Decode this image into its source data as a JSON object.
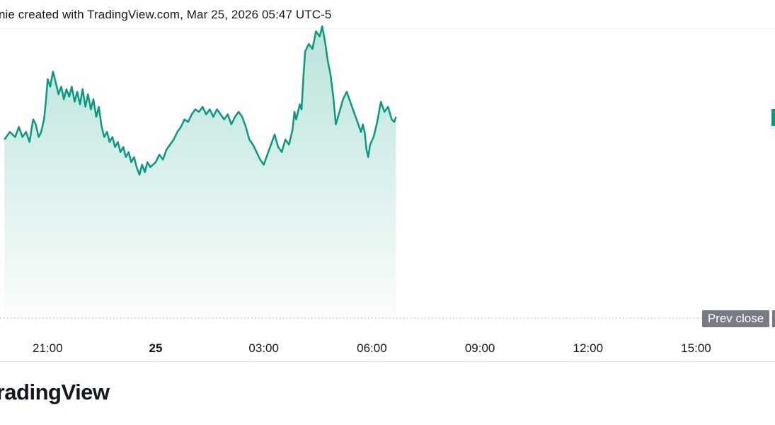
{
  "header": {
    "text": "nie created with TradingView.com, Mar 25, 2026 05:47 UTC-5"
  },
  "brand": {
    "text": "TradingView"
  },
  "prev_close": {
    "label": "Prev close"
  },
  "colors": {
    "line": "#089981",
    "fill_top": "#089981",
    "prev_close_badge": "#787b86",
    "dotted_line": "#b2b5be",
    "text": "#131722"
  },
  "chart_data": {
    "type": "area",
    "title": "",
    "xlabel": "",
    "ylabel": "",
    "x_tick_labels": [
      {
        "label": "21:00",
        "bold": false
      },
      {
        "label": "25",
        "bold": true
      },
      {
        "label": "03:00",
        "bold": false
      },
      {
        "label": "06:00",
        "bold": false
      },
      {
        "label": "09:00",
        "bold": false
      },
      {
        "label": "12:00",
        "bold": false
      },
      {
        "label": "15:00",
        "bold": false
      }
    ],
    "x_unit": "hours relative to Mar 25 00:00 (session time)",
    "x_range": [
      -4.2,
      17.9
    ],
    "prev_close_reference": true,
    "grid": false,
    "series": [
      {
        "points": [
          [
            -4.2,
            0.71
          ],
          [
            -4.05,
            0.74
          ],
          [
            -3.9,
            0.72
          ],
          [
            -3.8,
            0.76
          ],
          [
            -3.7,
            0.72
          ],
          [
            -3.6,
            0.74
          ],
          [
            -3.5,
            0.7
          ],
          [
            -3.45,
            0.75
          ],
          [
            -3.4,
            0.79
          ],
          [
            -3.33,
            0.77
          ],
          [
            -3.25,
            0.72
          ],
          [
            -3.18,
            0.74
          ],
          [
            -3.1,
            0.79
          ],
          [
            -3.05,
            0.86
          ],
          [
            -3.0,
            0.95
          ],
          [
            -2.93,
            0.92
          ],
          [
            -2.85,
            0.98
          ],
          [
            -2.78,
            0.94
          ],
          [
            -2.7,
            0.89
          ],
          [
            -2.62,
            0.92
          ],
          [
            -2.55,
            0.87
          ],
          [
            -2.48,
            0.91
          ],
          [
            -2.4,
            0.88
          ],
          [
            -2.33,
            0.92
          ],
          [
            -2.25,
            0.86
          ],
          [
            -2.18,
            0.9
          ],
          [
            -2.1,
            0.85
          ],
          [
            -2.03,
            0.91
          ],
          [
            -1.95,
            0.84
          ],
          [
            -1.88,
            0.89
          ],
          [
            -1.8,
            0.83
          ],
          [
            -1.73,
            0.87
          ],
          [
            -1.65,
            0.8
          ],
          [
            -1.58,
            0.84
          ],
          [
            -1.5,
            0.76
          ],
          [
            -1.43,
            0.72
          ],
          [
            -1.35,
            0.74
          ],
          [
            -1.28,
            0.7
          ],
          [
            -1.2,
            0.72
          ],
          [
            -1.13,
            0.68
          ],
          [
            -1.05,
            0.7
          ],
          [
            -0.98,
            0.66
          ],
          [
            -0.9,
            0.68
          ],
          [
            -0.83,
            0.64
          ],
          [
            -0.75,
            0.66
          ],
          [
            -0.68,
            0.62
          ],
          [
            -0.6,
            0.64
          ],
          [
            -0.53,
            0.6
          ],
          [
            -0.45,
            0.57
          ],
          [
            -0.38,
            0.61
          ],
          [
            -0.3,
            0.58
          ],
          [
            -0.23,
            0.62
          ],
          [
            -0.15,
            0.6
          ],
          [
            0.0,
            0.62
          ],
          [
            0.1,
            0.65
          ],
          [
            0.2,
            0.63
          ],
          [
            0.3,
            0.67
          ],
          [
            0.4,
            0.69
          ],
          [
            0.5,
            0.71
          ],
          [
            0.6,
            0.74
          ],
          [
            0.7,
            0.76
          ],
          [
            0.8,
            0.79
          ],
          [
            0.9,
            0.78
          ],
          [
            1.0,
            0.81
          ],
          [
            1.1,
            0.83
          ],
          [
            1.2,
            0.82
          ],
          [
            1.3,
            0.84
          ],
          [
            1.4,
            0.81
          ],
          [
            1.5,
            0.83
          ],
          [
            1.6,
            0.8
          ],
          [
            1.7,
            0.83
          ],
          [
            1.8,
            0.81
          ],
          [
            1.9,
            0.79
          ],
          [
            2.0,
            0.81
          ],
          [
            2.1,
            0.77
          ],
          [
            2.2,
            0.8
          ],
          [
            2.3,
            0.82
          ],
          [
            2.4,
            0.8
          ],
          [
            2.5,
            0.76
          ],
          [
            2.6,
            0.71
          ],
          [
            2.7,
            0.69
          ],
          [
            2.8,
            0.66
          ],
          [
            2.9,
            0.63
          ],
          [
            3.0,
            0.61
          ],
          [
            3.1,
            0.65
          ],
          [
            3.2,
            0.69
          ],
          [
            3.3,
            0.73
          ],
          [
            3.4,
            0.68
          ],
          [
            3.5,
            0.66
          ],
          [
            3.6,
            0.71
          ],
          [
            3.7,
            0.69
          ],
          [
            3.8,
            0.75
          ],
          [
            3.85,
            0.82
          ],
          [
            3.9,
            0.79
          ],
          [
            4.0,
            0.85
          ],
          [
            4.05,
            0.83
          ],
          [
            4.1,
            0.96
          ],
          [
            4.15,
            1.06
          ],
          [
            4.25,
            1.09
          ],
          [
            4.35,
            1.07
          ],
          [
            4.45,
            1.14
          ],
          [
            4.55,
            1.12
          ],
          [
            4.62,
            1.16
          ],
          [
            4.7,
            1.1
          ],
          [
            4.78,
            1.02
          ],
          [
            4.85,
            0.97
          ],
          [
            4.93,
            0.88
          ],
          [
            5.0,
            0.77
          ],
          [
            5.1,
            0.82
          ],
          [
            5.2,
            0.87
          ],
          [
            5.3,
            0.9
          ],
          [
            5.4,
            0.86
          ],
          [
            5.5,
            0.82
          ],
          [
            5.6,
            0.78
          ],
          [
            5.7,
            0.74
          ],
          [
            5.75,
            0.77
          ],
          [
            5.8,
            0.74
          ],
          [
            5.85,
            0.67
          ],
          [
            5.9,
            0.64
          ],
          [
            5.95,
            0.69
          ],
          [
            6.05,
            0.72
          ],
          [
            6.15,
            0.78
          ],
          [
            6.25,
            0.86
          ],
          [
            6.35,
            0.82
          ],
          [
            6.45,
            0.84
          ],
          [
            6.55,
            0.79
          ],
          [
            6.62,
            0.78
          ],
          [
            6.67,
            0.8
          ]
        ]
      }
    ]
  }
}
